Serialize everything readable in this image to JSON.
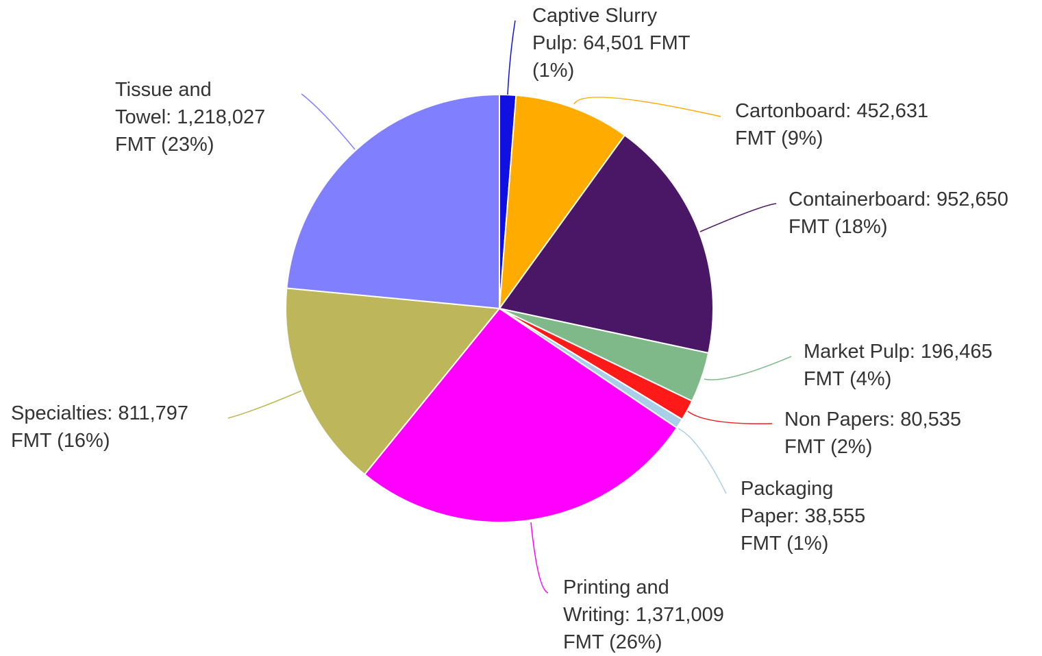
{
  "chart_data": {
    "type": "pie",
    "categories": [
      "Captive Slurry Pulp: 64,501 FMT (1%)",
      "Cartonboard: 452,631 FMT (9%)",
      "Containerboard: 952,650 FMT (18%)",
      "Market Pulp: 196,465 FMT (4%)",
      "Non Papers: 80,535 FMT (2%)",
      "Packaging Paper: 38,555 FMT (1%)",
      "Printing and Writing: 1,371,009 FMT (26%)",
      "Specialties: 811,797 FMT (16%)",
      "Tissue and Towel: 1,218,027 FMT (23%)"
    ],
    "values": [
      64501,
      452631,
      952650,
      196465,
      80535,
      38555,
      1371009,
      811797,
      1218027
    ],
    "colors": [
      "#1010e0",
      "#ffab00",
      "#4a1766",
      "#7fb98a",
      "#ff1a1a",
      "#a9cfe8",
      "#ff00ff",
      "#bdb65a",
      "#8080ff"
    ]
  }
}
